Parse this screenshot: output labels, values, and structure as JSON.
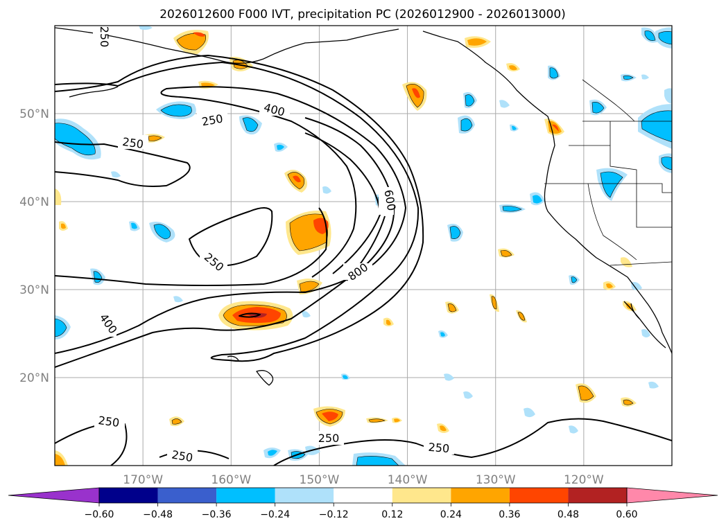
{
  "figure": {
    "title": "2026012600 F000 IVT, precipitation PC (2026012900 - 2026013000)"
  },
  "chart_data": {
    "type": "contour-map",
    "title": "2026012600 F000 IVT, precipitation PC (2026012900 - 2026013000)",
    "map_extent": {
      "lon_min": -180,
      "lon_max": -110,
      "lat_min": 10,
      "lat_max": 60
    },
    "lat_ticks": [
      {
        "value": 50,
        "label": "50°N"
      },
      {
        "value": 40,
        "label": "40°N"
      },
      {
        "value": 30,
        "label": "30°N"
      },
      {
        "value": 20,
        "label": "20°N"
      }
    ],
    "lon_ticks": [
      {
        "value": -170,
        "label": "170°W"
      },
      {
        "value": -160,
        "label": "160°W"
      },
      {
        "value": -150,
        "label": "150°W"
      },
      {
        "value": -140,
        "label": "140°W"
      },
      {
        "value": -130,
        "label": "130°W"
      },
      {
        "value": -120,
        "label": "120°W"
      }
    ],
    "ivt_contour_labels": [
      "250",
      "400",
      "600",
      "800"
    ],
    "colorbar": {
      "ticks": [
        "−0.60",
        "−0.48",
        "−0.36",
        "−0.24",
        "−0.12",
        "0.12",
        "0.24",
        "0.36",
        "0.48",
        "0.60"
      ],
      "colors": [
        "#9932cc",
        "#00008b",
        "#3a5fcd",
        "#00bfff",
        "#afe1fa",
        "#ffffff",
        "#ffe78c",
        "#ffa500",
        "#ff4500",
        "#b22222",
        "#ff88aa"
      ],
      "extend": "both"
    }
  }
}
